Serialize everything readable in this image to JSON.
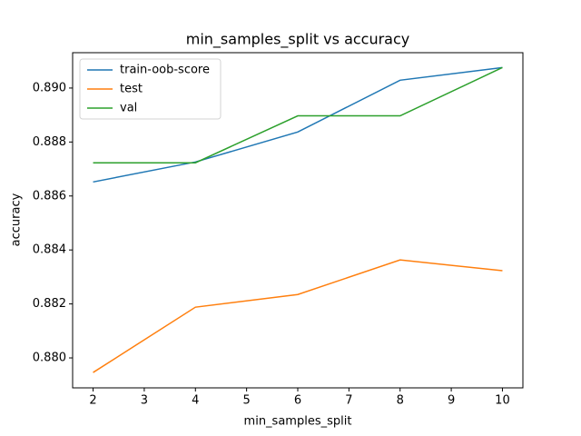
{
  "chart_data": {
    "type": "line",
    "title": "min_samples_split vs accuracy",
    "x_label": "min_samples_split",
    "y_label": "accuracy",
    "x": [
      2,
      4,
      6,
      8,
      10
    ],
    "series": [
      {
        "name": "train-oob-score",
        "color": "#1f77b4",
        "values": [
          0.88652,
          0.88726,
          0.88837,
          0.89029,
          0.89076
        ]
      },
      {
        "name": "test",
        "color": "#ff7f0e",
        "values": [
          0.87946,
          0.88188,
          0.88235,
          0.88363,
          0.88323
        ]
      },
      {
        "name": "val",
        "color": "#2ca02c",
        "values": [
          0.88723,
          0.88723,
          0.88897,
          0.88897,
          0.89076
        ]
      }
    ],
    "xlim": [
      1.6,
      10.4
    ],
    "xticks": [
      2,
      3,
      4,
      5,
      6,
      7,
      8,
      9,
      10
    ],
    "ylim": [
      0.87889,
      0.89131
    ],
    "yticks": [
      {
        "value": 0.88,
        "label": "0.880"
      },
      0.882,
      0.884,
      0.886,
      0.888,
      {
        "value": 0.89,
        "label": "0.890"
      }
    ],
    "legend": "upper left",
    "grid": false
  }
}
